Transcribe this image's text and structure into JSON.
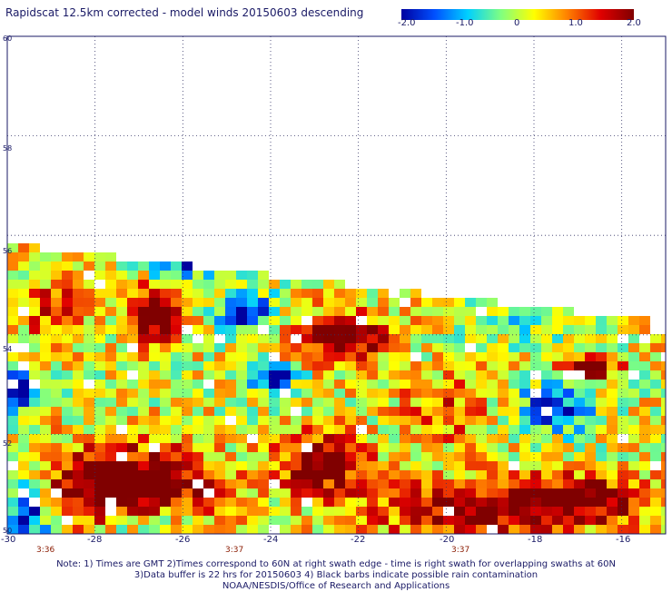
{
  "title": "Rapidscat 12.5km corrected - model winds 20150603 descending",
  "colorbar": {
    "ticks": [
      "-2.0",
      "-1.0",
      "0",
      "1.0",
      "2.0"
    ],
    "stops": [
      "#0000a0",
      "#0050ff",
      "#00d0ff",
      "#80ff80",
      "#ffff00",
      "#ff8000",
      "#e00000",
      "#800000"
    ]
  },
  "chart_data": {
    "type": "heatmap",
    "x_range": [
      -30,
      -15
    ],
    "y_range": [
      50,
      60
    ],
    "x_ticks": [
      "-30",
      "-28",
      "-26",
      "-24",
      "-22",
      "-20",
      "-18",
      "-16"
    ],
    "y_ticks": [
      "50",
      "52",
      "54",
      "56",
      "58",
      "60"
    ],
    "value_range": [
      -2.0,
      2.0
    ],
    "time_labels": [
      {
        "label": "3:36",
        "lon": -29
      },
      {
        "label": "3:37",
        "lon": -24.8
      },
      {
        "label": "3:37",
        "lon": -19.7
      }
    ],
    "grid": true
  },
  "notes": [
    "Note: 1) Times are GMT 2)Times correspond to 60N at right swath edge - time is right swath for overlapping swaths at 60N",
    "3)Data buffer is 22 hrs for 20150603 4) Black barbs indicate possible rain contamination",
    "NOAA/NESDIS/Office of Research and Applications"
  ]
}
